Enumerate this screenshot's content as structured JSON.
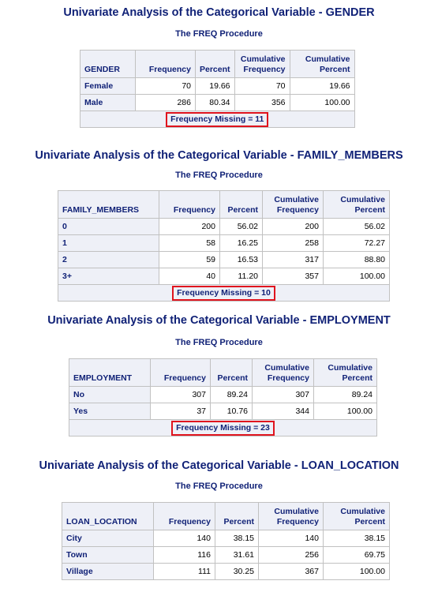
{
  "sections": [
    {
      "title": "Univariate Analysis of the Categorical Variable - GENDER",
      "procedure": "The FREQ Procedure",
      "headers": [
        "GENDER",
        "Frequency",
        "Percent",
        "Cumulative\nFrequency",
        "Cumulative\nPercent"
      ],
      "rows": [
        [
          "Female",
          "70",
          "19.66",
          "70",
          "19.66"
        ],
        [
          "Male",
          "286",
          "80.34",
          "356",
          "100.00"
        ]
      ],
      "missing": "Frequency Missing = 11"
    },
    {
      "title": "Univariate Analysis of the Categorical Variable - FAMILY_MEMBERS",
      "procedure": "The FREQ Procedure",
      "headers": [
        "FAMILY_MEMBERS",
        "Frequency",
        "Percent",
        "Cumulative\nFrequency",
        "Cumulative\nPercent"
      ],
      "rows": [
        [
          "0",
          "200",
          "56.02",
          "200",
          "56.02"
        ],
        [
          "1",
          "58",
          "16.25",
          "258",
          "72.27"
        ],
        [
          "2",
          "59",
          "16.53",
          "317",
          "88.80"
        ],
        [
          "3+",
          "40",
          "11.20",
          "357",
          "100.00"
        ]
      ],
      "missing": "Frequency Missing = 10"
    },
    {
      "title": "Univariate Analysis of the Categorical Variable - EMPLOYMENT",
      "procedure": "The FREQ Procedure",
      "headers": [
        "EMPLOYMENT",
        "Frequency",
        "Percent",
        "Cumulative\nFrequency",
        "Cumulative\nPercent"
      ],
      "rows": [
        [
          "No",
          "307",
          "89.24",
          "307",
          "89.24"
        ],
        [
          "Yes",
          "37",
          "10.76",
          "344",
          "100.00"
        ]
      ],
      "missing": "Frequency Missing = 23"
    },
    {
      "title": "Univariate Analysis of the Categorical Variable - LOAN_LOCATION",
      "procedure": "The FREQ Procedure",
      "headers": [
        "LOAN_LOCATION",
        "Frequency",
        "Percent",
        "Cumulative\nFrequency",
        "Cumulative\nPercent"
      ],
      "rows": [
        [
          "City",
          "140",
          "38.15",
          "140",
          "38.15"
        ],
        [
          "Town",
          "116",
          "31.61",
          "256",
          "69.75"
        ],
        [
          "Village",
          "111",
          "30.25",
          "367",
          "100.00"
        ]
      ],
      "missing": ""
    }
  ]
}
